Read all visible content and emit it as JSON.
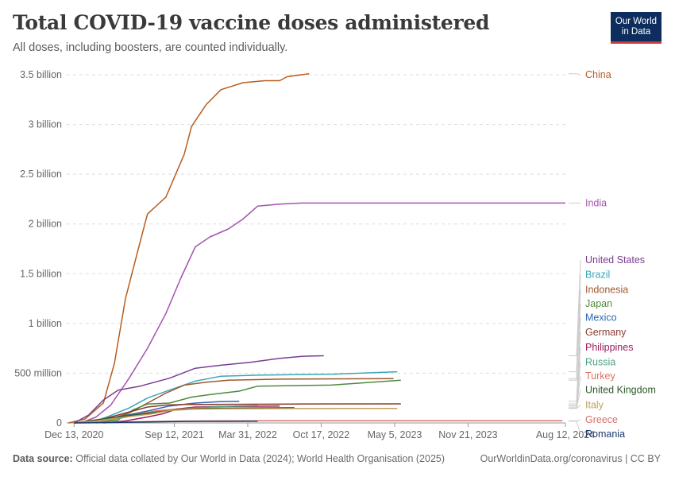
{
  "header": {
    "title": "Total COVID-19 vaccine doses administered",
    "subtitle": "All doses, including boosters, are counted individually.",
    "logo_line1": "Our World",
    "logo_line2": "in Data"
  },
  "footer": {
    "source_label": "Data source:",
    "source_text": "Official data collated by Our World in Data (2024); World Health Organisation (2025)",
    "url": "OurWorldinData.org/coronavirus | CC BY"
  },
  "chart_data": {
    "type": "line",
    "title": "Total COVID-19 vaccine doses administered",
    "subtitle": "All doses, including boosters, are counted individually.",
    "x_ticks": [
      "Dec 13, 2020",
      "Sep 12, 2021",
      "Mar 31, 2022",
      "Oct 17, 2022",
      "May 5, 2023",
      "Nov 21, 2023",
      "Aug 12, 2024"
    ],
    "x_tick_days": [
      0,
      273,
      473,
      673,
      873,
      1073,
      1338
    ],
    "y_ticks": [
      0,
      500000000,
      1000000000,
      1500000000,
      2000000000,
      2500000000,
      3000000000,
      3500000000
    ],
    "y_tick_labels": [
      "0",
      "500 million",
      "1 billion",
      "1.5 billion",
      "2 billion",
      "2.5 billion",
      "3 billion",
      "3.5 billion"
    ],
    "ylim": [
      0,
      3500000000
    ],
    "xlim_days": [
      -20,
      1338
    ],
    "grid": "horizontal-dashed",
    "series": [
      {
        "name": "China",
        "color": "#b85d1f",
        "label_y": 3500000000,
        "points": [
          [
            -15,
            0
          ],
          [
            30,
            40000000
          ],
          [
            80,
            200000000
          ],
          [
            110,
            600000000
          ],
          [
            140,
            1250000000
          ],
          [
            175,
            1750000000
          ],
          [
            200,
            2100000000
          ],
          [
            250,
            2270000000
          ],
          [
            300,
            2700000000
          ],
          [
            320,
            2980000000
          ],
          [
            360,
            3200000000
          ],
          [
            400,
            3350000000
          ],
          [
            460,
            3420000000
          ],
          [
            520,
            3440000000
          ],
          [
            560,
            3440000000
          ],
          [
            580,
            3480000000
          ],
          [
            640,
            3510000000
          ]
        ]
      },
      {
        "name": "India",
        "color": "#a453b0",
        "label_y": 2210000000,
        "points": [
          [
            20,
            0
          ],
          [
            60,
            60000000
          ],
          [
            100,
            180000000
          ],
          [
            150,
            450000000
          ],
          [
            200,
            750000000
          ],
          [
            250,
            1100000000
          ],
          [
            290,
            1450000000
          ],
          [
            330,
            1770000000
          ],
          [
            370,
            1870000000
          ],
          [
            420,
            1950000000
          ],
          [
            460,
            2050000000
          ],
          [
            500,
            2180000000
          ],
          [
            560,
            2200000000
          ],
          [
            620,
            2210000000
          ],
          [
            900,
            2210000000
          ],
          [
            1338,
            2210000000
          ]
        ]
      },
      {
        "name": "United States",
        "color": "#7a3d91",
        "label_y": 1640000000,
        "points": [
          [
            0,
            0
          ],
          [
            40,
            80000000
          ],
          [
            80,
            230000000
          ],
          [
            120,
            330000000
          ],
          [
            180,
            370000000
          ],
          [
            260,
            450000000
          ],
          [
            330,
            550000000
          ],
          [
            400,
            580000000
          ],
          [
            480,
            610000000
          ],
          [
            560,
            650000000
          ],
          [
            620,
            670000000
          ],
          [
            680,
            675000000
          ]
        ]
      },
      {
        "name": "Brazil",
        "color": "#3aa6b8",
        "label_y": 1490000000,
        "points": [
          [
            40,
            0
          ],
          [
            90,
            60000000
          ],
          [
            150,
            150000000
          ],
          [
            200,
            250000000
          ],
          [
            260,
            330000000
          ],
          [
            330,
            420000000
          ],
          [
            400,
            470000000
          ],
          [
            500,
            480000000
          ],
          [
            700,
            490000000
          ],
          [
            880,
            515000000
          ]
        ]
      },
      {
        "name": "Indonesia",
        "color": "#9c5a2f",
        "label_y": 1340000000,
        "points": [
          [
            40,
            0
          ],
          [
            100,
            40000000
          ],
          [
            150,
            100000000
          ],
          [
            200,
            200000000
          ],
          [
            250,
            300000000
          ],
          [
            300,
            380000000
          ],
          [
            360,
            410000000
          ],
          [
            420,
            430000000
          ],
          [
            560,
            440000000
          ],
          [
            870,
            445000000
          ]
        ]
      },
      {
        "name": "Japan",
        "color": "#4f8a3c",
        "label_y": 1200000000,
        "points": [
          [
            60,
            0
          ],
          [
            120,
            30000000
          ],
          [
            160,
            130000000
          ],
          [
            200,
            190000000
          ],
          [
            260,
            200000000
          ],
          [
            320,
            260000000
          ],
          [
            380,
            290000000
          ],
          [
            450,
            320000000
          ],
          [
            500,
            370000000
          ],
          [
            700,
            380000000
          ],
          [
            890,
            430000000
          ]
        ]
      },
      {
        "name": "Mexico",
        "color": "#2f66b0",
        "label_y": 1060000000,
        "points": [
          [
            0,
            0
          ],
          [
            60,
            20000000
          ],
          [
            120,
            60000000
          ],
          [
            200,
            120000000
          ],
          [
            260,
            170000000
          ],
          [
            330,
            200000000
          ],
          [
            400,
            215000000
          ],
          [
            450,
            218000000
          ]
        ]
      },
      {
        "name": "Germany",
        "color": "#8b3a2e",
        "label_y": 910000000,
        "points": [
          [
            0,
            0
          ],
          [
            80,
            40000000
          ],
          [
            140,
            100000000
          ],
          [
            200,
            160000000
          ],
          [
            250,
            180000000
          ],
          [
            300,
            185000000
          ],
          [
            600,
            190000000
          ],
          [
            890,
            192000000
          ]
        ]
      },
      {
        "name": "Philippines",
        "color": "#9c1c5a",
        "label_y": 760000000,
        "points": [
          [
            80,
            0
          ],
          [
            140,
            20000000
          ],
          [
            200,
            60000000
          ],
          [
            240,
            90000000
          ],
          [
            280,
            140000000
          ],
          [
            330,
            160000000
          ],
          [
            400,
            165000000
          ],
          [
            560,
            170000000
          ]
        ]
      },
      {
        "name": "Russia",
        "color": "#4fa08a",
        "label_y": 610000000,
        "points": [
          [
            0,
            0
          ],
          [
            80,
            20000000
          ],
          [
            160,
            70000000
          ],
          [
            240,
            120000000
          ],
          [
            320,
            150000000
          ],
          [
            400,
            165000000
          ],
          [
            500,
            175000000
          ]
        ]
      },
      {
        "name": "Turkey",
        "color": "#e07060",
        "label_y": 470000000,
        "points": [
          [
            30,
            0
          ],
          [
            90,
            30000000
          ],
          [
            150,
            70000000
          ],
          [
            220,
            120000000
          ],
          [
            280,
            140000000
          ],
          [
            350,
            148000000
          ],
          [
            500,
            150000000
          ]
        ]
      },
      {
        "name": "United Kingdom",
        "color": "#2d5a28",
        "label_y": 330000000,
        "points": [
          [
            0,
            0
          ],
          [
            40,
            20000000
          ],
          [
            100,
            50000000
          ],
          [
            160,
            80000000
          ],
          [
            230,
            110000000
          ],
          [
            280,
            135000000
          ],
          [
            350,
            145000000
          ],
          [
            450,
            150000000
          ],
          [
            600,
            153000000
          ]
        ]
      },
      {
        "name": "Italy",
        "color": "#c29e58",
        "label_y": 180000000,
        "points": [
          [
            0,
            0
          ],
          [
            60,
            20000000
          ],
          [
            140,
            60000000
          ],
          [
            210,
            90000000
          ],
          [
            260,
            125000000
          ],
          [
            320,
            138000000
          ],
          [
            400,
            142000000
          ],
          [
            600,
            145000000
          ],
          [
            880,
            146000000
          ]
        ]
      },
      {
        "name": "Greece",
        "color": "#d4706e",
        "label_y": 30000000,
        "points": [
          [
            0,
            0
          ],
          [
            100,
            5000000
          ],
          [
            200,
            14000000
          ],
          [
            300,
            19000000
          ],
          [
            400,
            21000000
          ],
          [
            700,
            22000000
          ],
          [
            1330,
            22000000
          ]
        ]
      },
      {
        "name": "Romania",
        "color": "#1c3a6e",
        "label_y": -110000000,
        "points": [
          [
            0,
            0
          ],
          [
            100,
            4000000
          ],
          [
            200,
            10000000
          ],
          [
            300,
            15000000
          ],
          [
            400,
            16000000
          ],
          [
            500,
            17000000
          ]
        ]
      }
    ]
  }
}
